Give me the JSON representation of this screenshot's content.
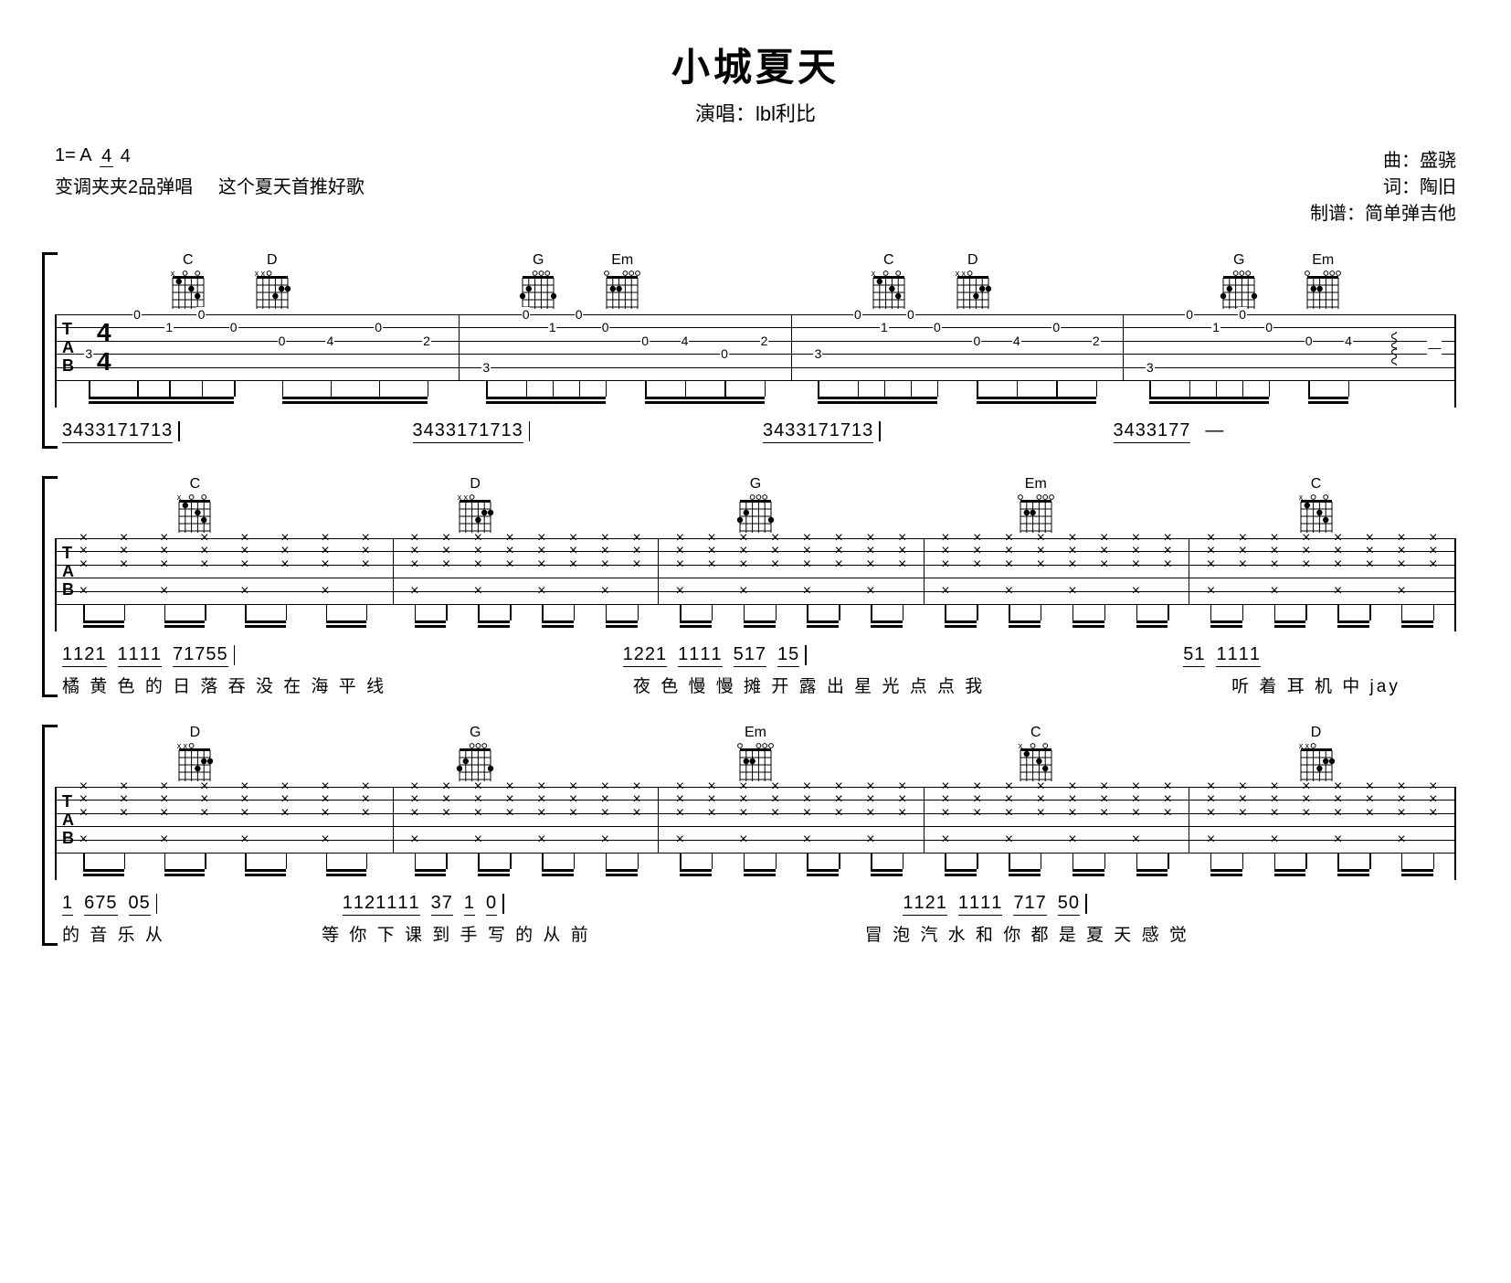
{
  "header": {
    "title": "小城夏天",
    "subtitle": "演唱：lbl利比",
    "key_prefix": "1=",
    "key": "A",
    "ts_top": "4",
    "ts_bot": "4",
    "capo_note": "变调夹夹2品弹唱",
    "recommend": "这个夏天首推好歌",
    "composer_label": "曲：",
    "composer": "盛骁",
    "lyricist_label": "词：",
    "lyricist": "陶旧",
    "tab_author_label": "制谱：",
    "tab_author": "简单弹吉他"
  },
  "chord_shapes": {
    "C": {
      "muted": [
        0
      ],
      "open": [
        2,
        4
      ],
      "dots": [
        [
          1,
          1
        ],
        [
          3,
          2
        ],
        [
          4,
          3
        ]
      ]
    },
    "D": {
      "muted": [
        0,
        1
      ],
      "open": [
        2
      ],
      "dots": [
        [
          4,
          2
        ],
        [
          3,
          3
        ],
        [
          5,
          2
        ]
      ]
    },
    "G": {
      "muted": [],
      "open": [
        2,
        3,
        4
      ],
      "dots": [
        [
          1,
          2
        ],
        [
          0,
          3
        ],
        [
          5,
          3
        ]
      ]
    },
    "Em": {
      "muted": [],
      "open": [
        0,
        3,
        4,
        5
      ],
      "dots": [
        [
          1,
          2
        ],
        [
          2,
          2
        ]
      ]
    }
  },
  "systems": [
    {
      "show_tab_label": true,
      "show_time_sig": true,
      "bars": [
        {
          "chords": [
            "C",
            "D"
          ],
          "tab_notes": [
            {
              "s": 4,
              "f": "3",
              "x": 8
            },
            {
              "s": 1,
              "f": "0",
              "x": 20
            },
            {
              "s": 2,
              "f": "1",
              "x": 28
            },
            {
              "s": 1,
              "f": "0",
              "x": 36
            },
            {
              "s": 2,
              "f": "0",
              "x": 44
            },
            {
              "s": 3,
              "f": "0",
              "x": 56
            },
            {
              "s": 3,
              "f": "4",
              "x": 68
            },
            {
              "s": 2,
              "f": "0",
              "x": 80
            },
            {
              "s": 3,
              "f": "2",
              "x": 92
            }
          ],
          "stems": [
            [
              8,
              20,
              28,
              36,
              44
            ],
            [
              56,
              68,
              80,
              92
            ]
          ]
        },
        {
          "chords": [
            "G",
            "Em"
          ],
          "tab_notes": [
            {
              "s": 5,
              "f": "3",
              "x": 8
            },
            {
              "s": 1,
              "f": "0",
              "x": 20
            },
            {
              "s": 2,
              "f": "1",
              "x": 28
            },
            {
              "s": 1,
              "f": "0",
              "x": 36
            },
            {
              "s": 2,
              "f": "0",
              "x": 44
            },
            {
              "s": 3,
              "f": "0",
              "x": 56
            },
            {
              "s": 3,
              "f": "4",
              "x": 68
            },
            {
              "s": 4,
              "f": "0",
              "x": 80
            },
            {
              "s": 3,
              "f": "2",
              "x": 92
            }
          ],
          "stems": [
            [
              8,
              20,
              28,
              36,
              44
            ],
            [
              56,
              68,
              80,
              92
            ]
          ]
        },
        {
          "chords": [
            "C",
            "D"
          ],
          "tab_notes": [
            {
              "s": 4,
              "f": "3",
              "x": 8
            },
            {
              "s": 1,
              "f": "0",
              "x": 20
            },
            {
              "s": 2,
              "f": "1",
              "x": 28
            },
            {
              "s": 1,
              "f": "0",
              "x": 36
            },
            {
              "s": 2,
              "f": "0",
              "x": 44
            },
            {
              "s": 3,
              "f": "0",
              "x": 56
            },
            {
              "s": 3,
              "f": "4",
              "x": 68
            },
            {
              "s": 2,
              "f": "0",
              "x": 80
            },
            {
              "s": 3,
              "f": "2",
              "x": 92
            }
          ],
          "stems": [
            [
              8,
              20,
              28,
              36,
              44
            ],
            [
              56,
              68,
              80,
              92
            ]
          ]
        },
        {
          "chords": [
            "G",
            "Em"
          ],
          "tab_notes": [
            {
              "s": 5,
              "f": "3",
              "x": 8
            },
            {
              "s": 1,
              "f": "0",
              "x": 20
            },
            {
              "s": 2,
              "f": "1",
              "x": 28
            },
            {
              "s": 1,
              "f": "0",
              "x": 36
            },
            {
              "s": 2,
              "f": "0",
              "x": 44
            },
            {
              "s": 3,
              "f": "0",
              "x": 56
            },
            {
              "s": 3,
              "f": "4",
              "x": 68
            }
          ],
          "wavy": {
            "x": 82
          },
          "dash": {
            "x": 94
          },
          "stems": [
            [
              8,
              20,
              28,
              36,
              44
            ],
            [
              56,
              68
            ]
          ]
        }
      ],
      "jianpu": [
        "3 43317 17 13",
        "3 43317 17 13",
        "3 43317 17 13",
        "3 43317 7  —"
      ],
      "lyrics": [
        "",
        "",
        "",
        ""
      ]
    },
    {
      "show_tab_label": true,
      "show_time_sig": false,
      "chord_single": true,
      "bars": [
        {
          "chords": [
            "C"
          ],
          "strum": true
        },
        {
          "chords": [
            "D"
          ],
          "strum": true
        },
        {
          "chords": [
            "G"
          ],
          "strum": true
        },
        {
          "chords": [
            "Em"
          ],
          "strum": true
        },
        {
          "chords": [
            "C"
          ],
          "strum": true
        }
      ],
      "jianpu": [
        "1 1 2 1  1 1 1 1  7 1 7 5 5",
        "",
        "1 2 2 1  1 1 1 1  5 1 7  1 5",
        "",
        "5 1  1 1 1 1"
      ],
      "lyrics": [
        "橘 黄 色 的 日 落 吞 没 在 海 平   线",
        "",
        "夜 色 慢 慢 摊 开 露 出 星 光 点  点 我",
        "",
        "听  着  耳 机 中 jay"
      ]
    },
    {
      "show_tab_label": true,
      "show_time_sig": false,
      "chord_single": true,
      "bars": [
        {
          "chords": [
            "D"
          ],
          "strum": true
        },
        {
          "chords": [
            "G"
          ],
          "strum": true
        },
        {
          "chords": [
            "Em"
          ],
          "strum": true
        },
        {
          "chords": [
            "C"
          ],
          "strum": true
        },
        {
          "chords": [
            "D"
          ],
          "strum": true
        }
      ],
      "jianpu": [
        "1  6 7 5  0 5",
        "1 1 2 1 1 1 1   3 7  1  0",
        "",
        "1 1 2 1  1 1 1 1  7 1 7   5 0",
        ""
      ],
      "lyrics": [
        "的  音  乐   从",
        "等 你 下 课 到 手 写  的  从  前",
        "",
        "冒 泡 汽 水 和 你 都 是 夏 天 感  觉",
        ""
      ]
    }
  ],
  "colors": {
    "bg": "#ffffff",
    "fg": "#000000"
  }
}
